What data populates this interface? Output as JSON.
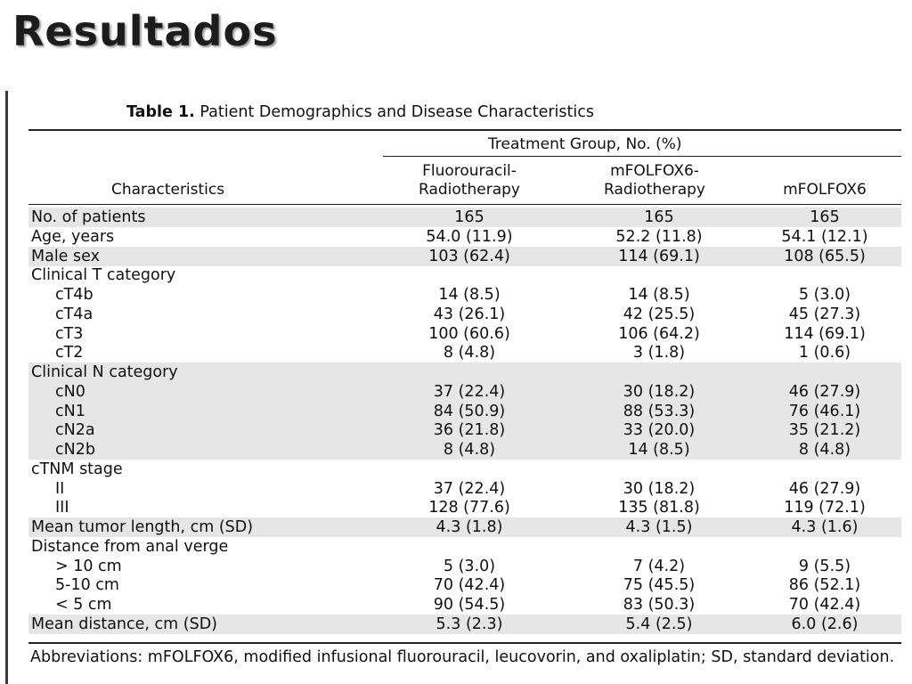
{
  "slide_title": "Resultados",
  "table": {
    "caption_bold": "Table 1.",
    "caption_rest": "Patient Demographics and Disease Characteristics",
    "group_header": "Treatment Group, No. (%)",
    "col_characteristics": "Characteristics",
    "col1_line1": "Fluorouracil-",
    "col1_line2": "Radiotherapy",
    "col2_line1": "mFOLFOX6-",
    "col2_line2": "Radiotherapy",
    "col3": "mFOLFOX6",
    "rows": [
      {
        "label": "No. of patients",
        "v1": "165",
        "v2": "165",
        "v3": "165"
      },
      {
        "label": "Age, years",
        "v1": "54.0 (11.9)",
        "v2": "52.2 (11.8)",
        "v3": "54.1 (12.1)"
      },
      {
        "label": "Male sex",
        "v1": "103 (62.4)",
        "v2": "114 (69.1)",
        "v3": "108 (65.5)"
      },
      {
        "label": "Clinical T category",
        "v1": "",
        "v2": "",
        "v3": ""
      },
      {
        "label": "cT4b",
        "v1": "14 (8.5)",
        "v2": "14 (8.5)",
        "v3": "5 (3.0)"
      },
      {
        "label": "cT4a",
        "v1": "43 (26.1)",
        "v2": "42 (25.5)",
        "v3": "45 (27.3)"
      },
      {
        "label": "cT3",
        "v1": "100 (60.6)",
        "v2": "106 (64.2)",
        "v3": "114 (69.1)"
      },
      {
        "label": "cT2",
        "v1": "8 (4.8)",
        "v2": "3 (1.8)",
        "v3": "1 (0.6)"
      },
      {
        "label": "Clinical N category",
        "v1": "",
        "v2": "",
        "v3": ""
      },
      {
        "label": "cN0",
        "v1": "37 (22.4)",
        "v2": "30 (18.2)",
        "v3": "46 (27.9)"
      },
      {
        "label": "cN1",
        "v1": "84 (50.9)",
        "v2": "88 (53.3)",
        "v3": "76 (46.1)"
      },
      {
        "label": "cN2a",
        "v1": "36 (21.8)",
        "v2": "33 (20.0)",
        "v3": "35 (21.2)"
      },
      {
        "label": "cN2b",
        "v1": "8 (4.8)",
        "v2": "14 (8.5)",
        "v3": "8 (4.8)"
      },
      {
        "label": "cTNM stage",
        "v1": "",
        "v2": "",
        "v3": ""
      },
      {
        "label": "II",
        "v1": "37 (22.4)",
        "v2": "30 (18.2)",
        "v3": "46 (27.9)"
      },
      {
        "label": "III",
        "v1": "128 (77.6)",
        "v2": "135 (81.8)",
        "v3": "119 (72.1)"
      },
      {
        "label": "Mean tumor length, cm (SD)",
        "v1": "4.3 (1.8)",
        "v2": "4.3 (1.5)",
        "v3": "4.3 (1.6)"
      },
      {
        "label": "Distance from anal verge",
        "v1": "",
        "v2": "",
        "v3": ""
      },
      {
        "label": "> 10 cm",
        "v1": "5 (3.0)",
        "v2": "7 (4.2)",
        "v3": "9 (5.5)"
      },
      {
        "label": "5-10 cm",
        "v1": "70 (42.4)",
        "v2": "75 (45.5)",
        "v3": "86 (52.1)"
      },
      {
        "label": "< 5 cm",
        "v1": "90 (54.5)",
        "v2": "83 (50.3)",
        "v3": "70 (42.4)"
      },
      {
        "label": "Mean distance, cm (SD)",
        "v1": "5.3 (2.3)",
        "v2": "5.4 (2.5)",
        "v3": "6.0 (2.6)"
      }
    ],
    "footnote": "Abbreviations: mFOLFOX6, modified infusional fluorouracil, leucovorin, and oxaliplatin; SD, standard deviation."
  }
}
